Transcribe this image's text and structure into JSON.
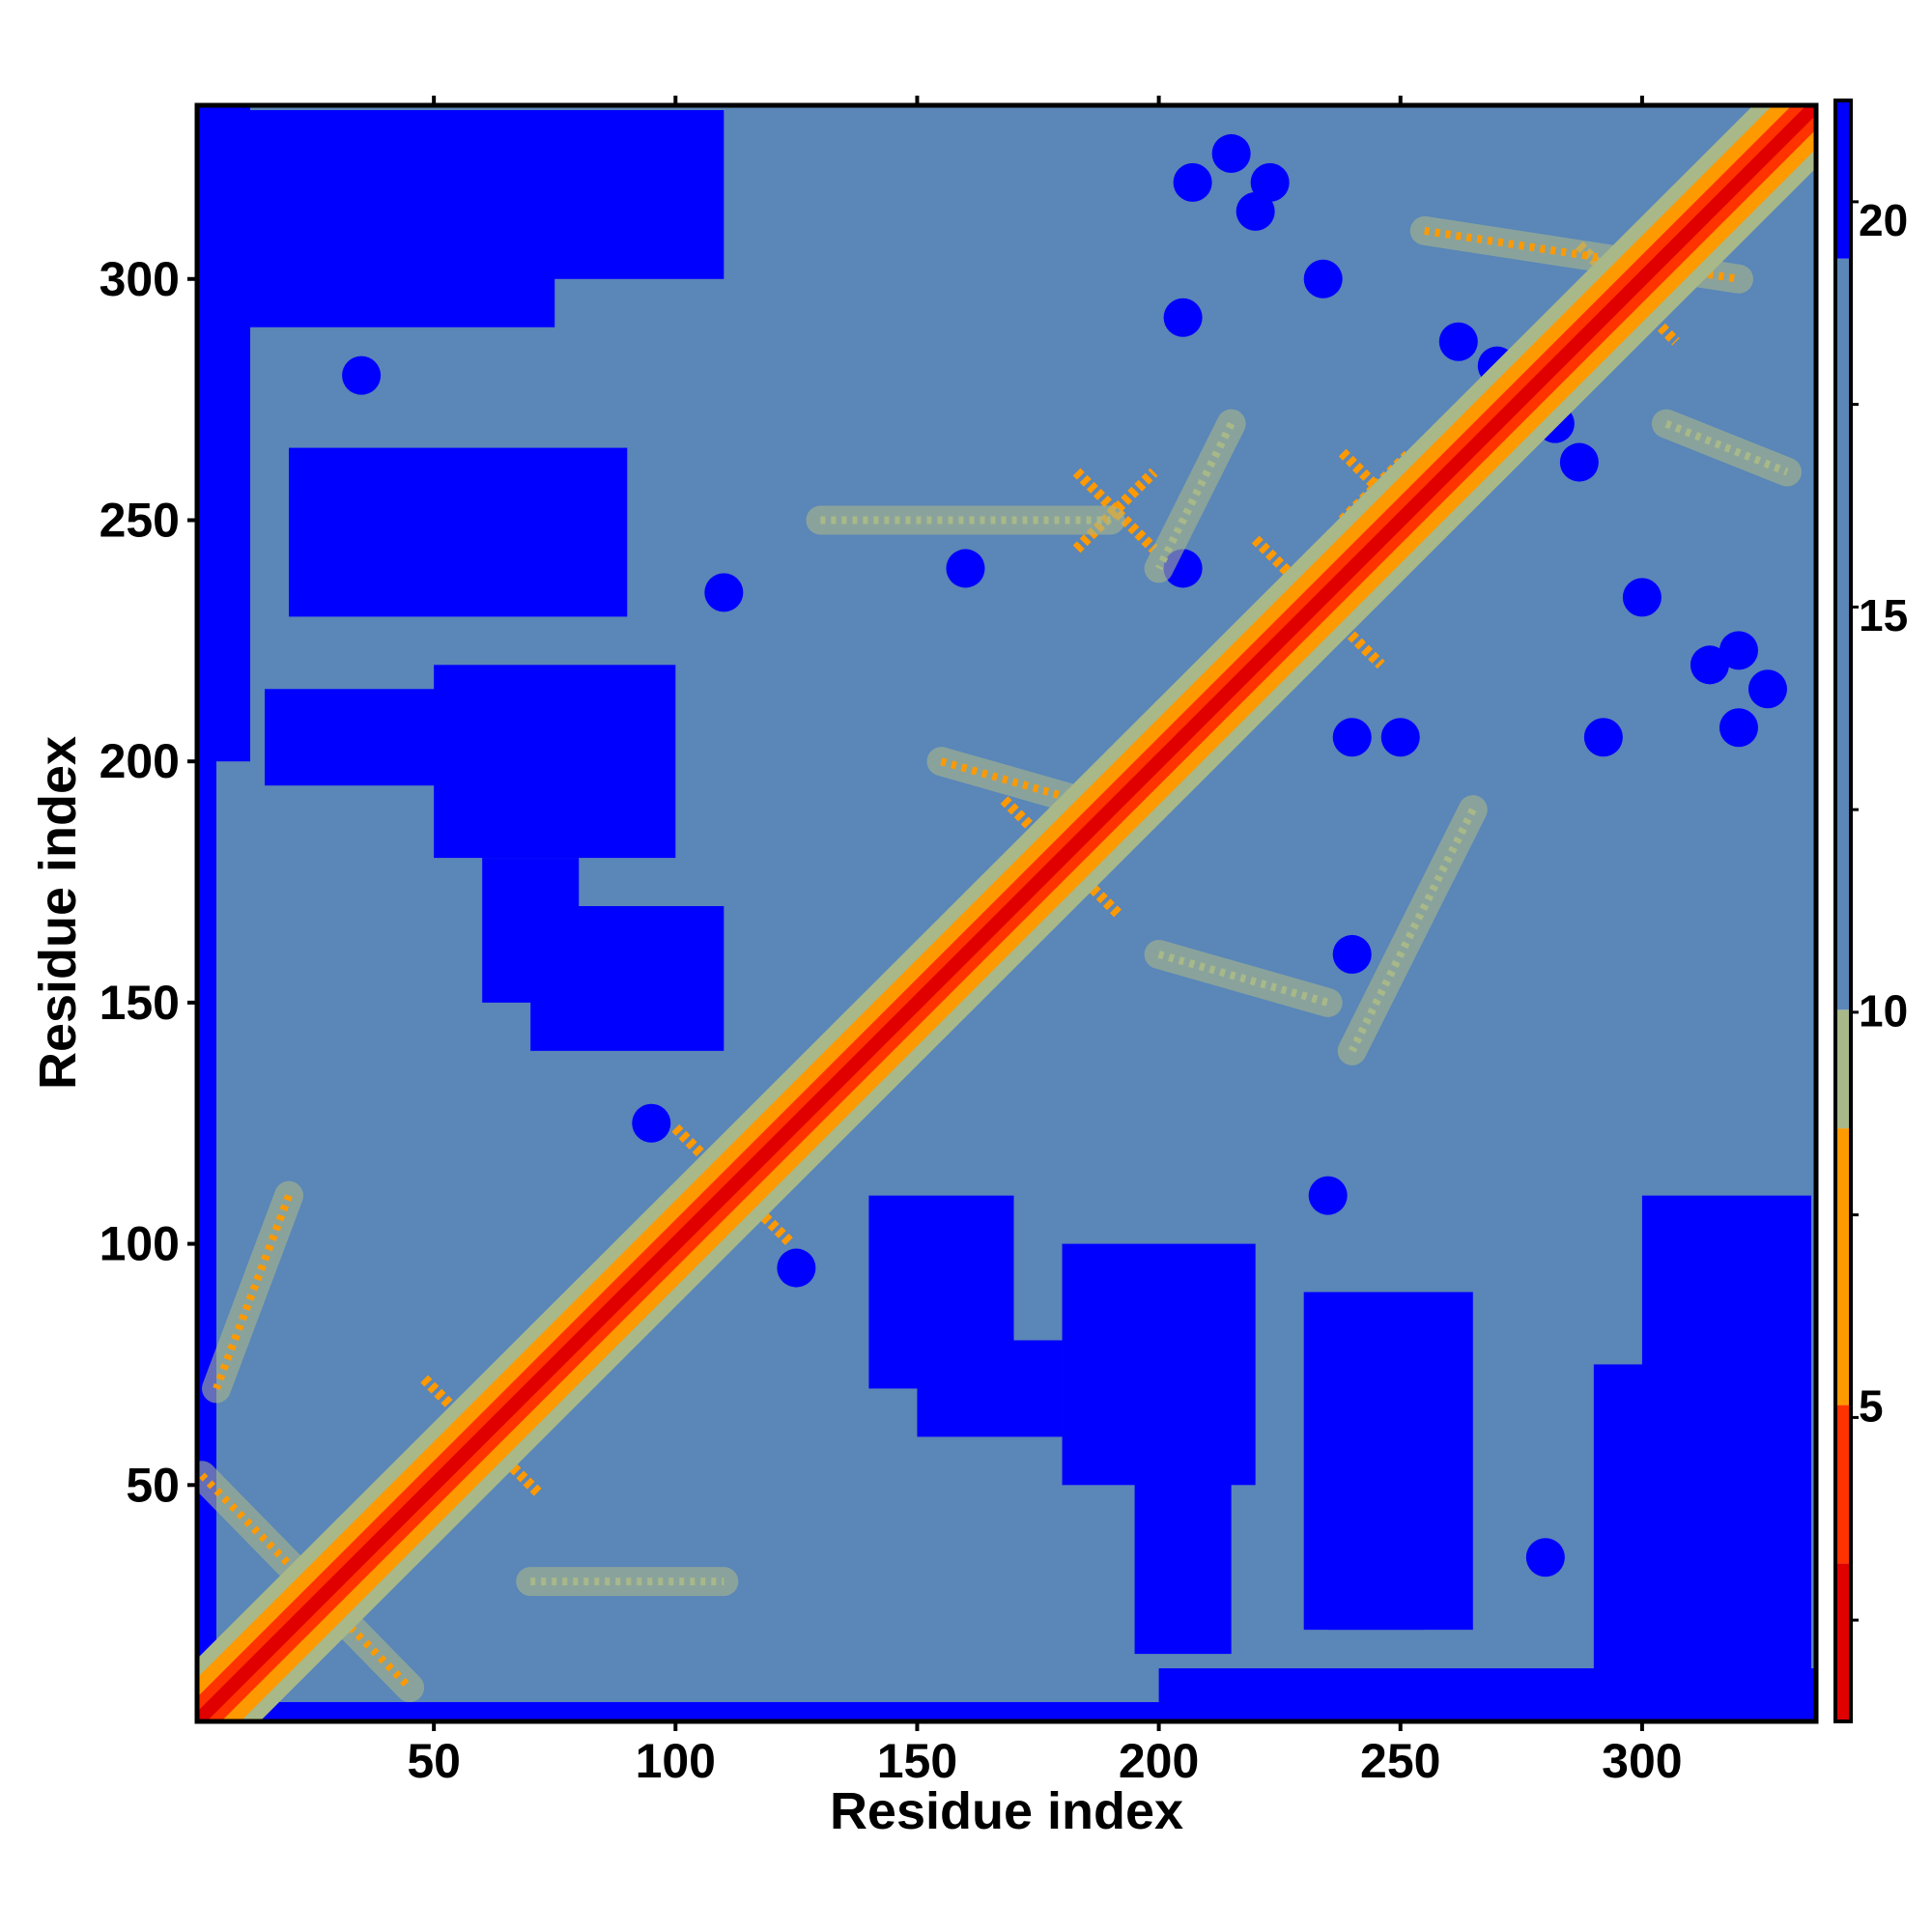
{
  "chart_data": {
    "type": "heatmap",
    "description_of_values": "pairwise residue distance map (symmetric)",
    "title": "",
    "xlabel": "Residue index",
    "ylabel": "Residue index",
    "xlim": [
      1,
      336
    ],
    "ylim": [
      1,
      336
    ],
    "x_ticks": [
      50,
      100,
      150,
      200,
      250,
      300
    ],
    "y_ticks": [
      50,
      100,
      150,
      200,
      250,
      300
    ],
    "colorbar": {
      "range": [
        1,
        21.5
      ],
      "ticks": [
        5,
        10,
        15,
        20
      ],
      "colors": [
        {
          "max": 3,
          "color": "#e00000"
        },
        {
          "max": 5,
          "color": "#ff3300"
        },
        {
          "max": 8.5,
          "color": "#ff9900"
        },
        {
          "max": 10,
          "color": "#a8b888"
        },
        {
          "max": 19.5,
          "color": "#5a86b8"
        },
        {
          "max": 21.5,
          "color": "#0000ff"
        }
      ]
    },
    "diagonal_value": 0,
    "background_value": 17,
    "near_diagonal": {
      "thresholds": [
        [
          1,
          2
        ],
        [
          3,
          5
        ],
        [
          6,
          9
        ],
        [
          10,
          13
        ]
      ]
    },
    "contact_features": [
      {
        "kind": "cross",
        "center": [
          233,
          233
        ],
        "span": 13,
        "value": 6
      },
      {
        "kind": "cross",
        "center": [
          180,
          180
        ],
        "span": 12,
        "value": 6
      },
      {
        "kind": "cross",
        "center": [
          297,
          297
        ],
        "span": 10,
        "value": 6
      },
      {
        "kind": "cross",
        "center": [
          191,
          252
        ],
        "span": 8,
        "value": 6
      },
      {
        "kind": "cross",
        "center": [
          245,
          257
        ],
        "span": 7,
        "value": 6
      },
      {
        "kind": "cross",
        "center": [
          60,
          60
        ],
        "span": 12,
        "value": 8
      },
      {
        "kind": "cross",
        "center": [
          112,
          112
        ],
        "span": 12,
        "value": 8
      },
      {
        "kind": "band",
        "from": [
          2,
          52
        ],
        "to": [
          45,
          8
        ],
        "value": 7
      },
      {
        "kind": "band",
        "from": [
          20,
          110
        ],
        "to": [
          5,
          70
        ],
        "value": 8
      },
      {
        "kind": "band",
        "from": [
          70,
          30
        ],
        "to": [
          110,
          30
        ],
        "value": 9
      },
      {
        "kind": "band",
        "from": [
          130,
          250
        ],
        "to": [
          190,
          250
        ],
        "value": 9
      },
      {
        "kind": "band",
        "from": [
          155,
          200
        ],
        "to": [
          190,
          190
        ],
        "value": 8
      },
      {
        "kind": "band",
        "from": [
          200,
          160
        ],
        "to": [
          235,
          150
        ],
        "value": 9
      },
      {
        "kind": "band",
        "from": [
          265,
          190
        ],
        "to": [
          240,
          140
        ],
        "value": 9
      },
      {
        "kind": "band",
        "from": [
          215,
          270
        ],
        "to": [
          200,
          240
        ],
        "value": 9
      },
      {
        "kind": "band",
        "from": [
          255,
          310
        ],
        "to": [
          320,
          300
        ],
        "value": 8
      },
      {
        "kind": "band",
        "from": [
          305,
          270
        ],
        "to": [
          330,
          260
        ],
        "value": 9
      }
    ],
    "far_regions": [
      {
        "x": [
          1,
          5
        ],
        "y": [
          1,
          336
        ],
        "value": 21
      },
      {
        "x": [
          1,
          336
        ],
        "y": [
          1,
          5
        ],
        "value": 21
      },
      {
        "x": [
          1,
          12
        ],
        "y": [
          200,
          336
        ],
        "value": 21
      },
      {
        "x": [
          200,
          336
        ],
        "y": [
          1,
          12
        ],
        "value": 21
      },
      {
        "x": [
          2,
          75
        ],
        "y": [
          290,
          335
        ],
        "value": 21
      },
      {
        "x": [
          290,
          335
        ],
        "y": [
          2,
          75
        ],
        "value": 21
      },
      {
        "x": [
          20,
          60
        ],
        "y": [
          235,
          255
        ],
        "value": 21
      },
      {
        "x": [
          235,
          255
        ],
        "y": [
          20,
          60
        ],
        "value": 21
      },
      {
        "x": [
          50,
          100
        ],
        "y": [
          180,
          220
        ],
        "value": 21
      },
      {
        "x": [
          180,
          220
        ],
        "y": [
          50,
          100
        ],
        "value": 21
      },
      {
        "x": [
          70,
          110
        ],
        "y": [
          140,
          170
        ],
        "value": 21
      },
      {
        "x": [
          140,
          170
        ],
        "y": [
          70,
          110
        ],
        "value": 21
      },
      {
        "x": [
          230,
          265
        ],
        "y": [
          20,
          90
        ],
        "value": 21
      },
      {
        "x": [
          20,
          90
        ],
        "y": [
          230,
          265
        ],
        "value": 21
      },
      {
        "x": [
          300,
          335
        ],
        "y": [
          15,
          110
        ],
        "value": 21
      },
      {
        "x": [
          15,
          110
        ],
        "y": [
          300,
          335
        ],
        "value": 21
      },
      {
        "x": [
          195,
          215
        ],
        "y": [
          15,
          60
        ],
        "value": 21
      },
      {
        "x": [
          15,
          60
        ],
        "y": [
          195,
          215
        ],
        "value": 21
      },
      {
        "x": [
          150,
          180
        ],
        "y": [
          60,
          80
        ],
        "value": 21
      },
      {
        "x": [
          60,
          80
        ],
        "y": [
          150,
          180
        ],
        "value": 21
      }
    ],
    "far_spots": [
      [
        207,
        320
      ],
      [
        234,
        300
      ],
      [
        223,
        320
      ],
      [
        205,
        240
      ],
      [
        250,
        205
      ],
      [
        262,
        287
      ],
      [
        282,
        270
      ],
      [
        314,
        220
      ],
      [
        326,
        215
      ],
      [
        292,
        205
      ],
      [
        205,
        292
      ],
      [
        220,
        314
      ],
      [
        215,
        326
      ],
      [
        240,
        205
      ],
      [
        300,
        234
      ],
      [
        320,
        207
      ],
      [
        320,
        223
      ],
      [
        287,
        262
      ],
      [
        270,
        282
      ],
      [
        35,
        280
      ],
      [
        280,
        35
      ],
      [
        110,
        235
      ],
      [
        235,
        110
      ],
      [
        125,
        95
      ],
      [
        95,
        125
      ],
      [
        240,
        160
      ],
      [
        160,
        240
      ]
    ]
  }
}
